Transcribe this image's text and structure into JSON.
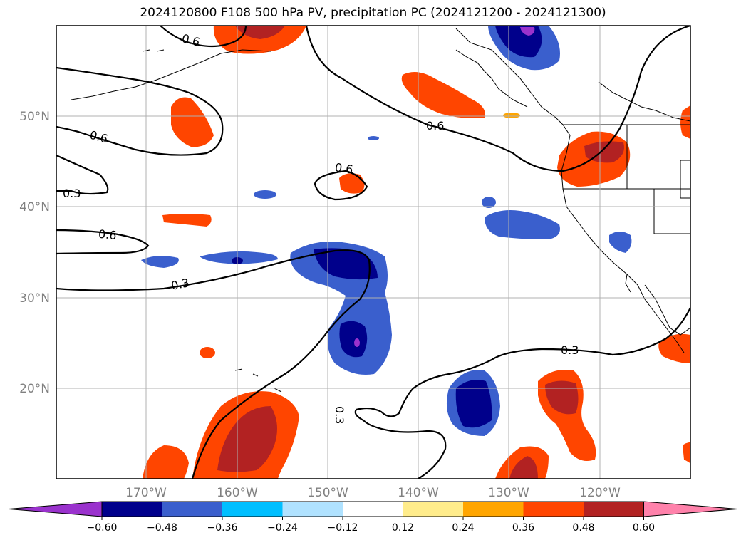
{
  "title": "2024120800 F108 500 hPa PV, precipitation PC (2024121200 - 2024121300)",
  "lat_labels": [
    "50°N",
    "40°N",
    "30°N",
    "20°N"
  ],
  "lon_labels": [
    "170°W",
    "160°W",
    "150°W",
    "140°W",
    "130°W",
    "120°W"
  ],
  "contour_labels": [
    {
      "text": "0.6"
    },
    {
      "text": "0.6"
    },
    {
      "text": "0.6"
    },
    {
      "text": "0.6"
    },
    {
      "text": "0.3"
    },
    {
      "text": "0.6"
    },
    {
      "text": "0.3"
    },
    {
      "text": "0.3"
    },
    {
      "text": "0.3"
    }
  ],
  "colorbar": {
    "ticks": [
      "−0.60",
      "−0.48",
      "−0.36",
      "−0.24",
      "−0.12",
      "0.12",
      "0.24",
      "0.36",
      "0.48",
      "0.60"
    ],
    "colors": [
      "#9a32cd",
      "#00008b",
      "#3a5fcd",
      "#00bfff",
      "#b0e2ff",
      "#ffffff",
      "#ffec8b",
      "#ffa500",
      "#ff4500",
      "#b22222",
      "#ff82ab"
    ]
  }
}
